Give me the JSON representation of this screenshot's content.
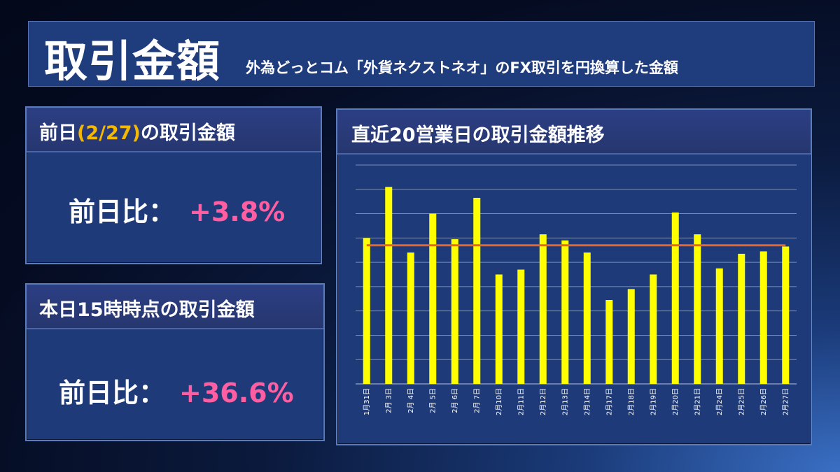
{
  "header": {
    "title": "取引金額",
    "subtitle": "外為どっとコム「外貨ネクストネオ」のFX取引を円換算した金額"
  },
  "prev_day_panel": {
    "title_prefix": "前日",
    "title_date": "(2/27)",
    "title_suffix": "の取引金額",
    "ratio_label": "前日比：",
    "ratio_value": "+3.8%"
  },
  "today_panel": {
    "title": "本日15時時点の取引金額",
    "ratio_label": "前日比：",
    "ratio_value": "+36.6%"
  },
  "chart_panel": {
    "title": "直近20営業日の取引金額推移"
  },
  "colors": {
    "bar": "#ffff00",
    "average_line": "#e8642a",
    "accent_date": "#f5b800",
    "ratio_value": "#ff5fa2",
    "panel_bg": "#1e3a78"
  },
  "chart_data": {
    "type": "bar",
    "categories": [
      "1月31日",
      "2月 3日",
      "2月 4日",
      "2月 5日",
      "2月 6日",
      "2月 7日",
      "2月10日",
      "2月11日",
      "2月12日",
      "2月13日",
      "2月14日",
      "2月17日",
      "2月18日",
      "2月19日",
      "2月20日",
      "2月21日",
      "2月24日",
      "2月25日",
      "2月26日",
      "2月27日"
    ],
    "values": [
      6.0,
      8.1,
      5.4,
      7.0,
      5.95,
      7.65,
      4.5,
      4.7,
      6.15,
      5.9,
      5.4,
      3.45,
      3.9,
      4.5,
      7.05,
      6.15,
      4.75,
      5.35,
      5.45,
      5.65
    ],
    "average_line": 5.7,
    "ylim": [
      0,
      9
    ],
    "gridlines": 9,
    "grid": true,
    "legend": "none",
    "y_tick_labels_shown": false
  }
}
